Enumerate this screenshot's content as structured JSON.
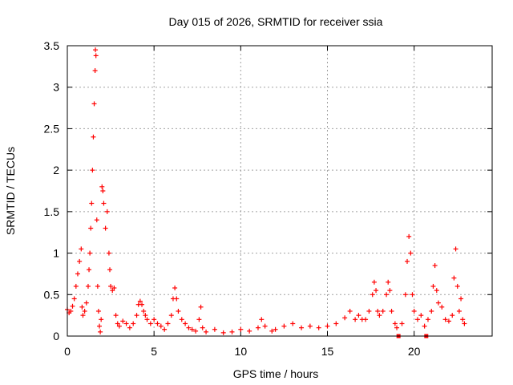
{
  "chart_data": {
    "type": "scatter",
    "title": "Day 015 of 2026, SRMTID for receiver ssia",
    "xlabel": "GPS time / hours",
    "ylabel": "SRMTID / TECUs",
    "xlim": [
      0,
      24.5
    ],
    "ylim": [
      0,
      3.5
    ],
    "xticks": [
      0,
      5,
      10,
      15,
      20
    ],
    "xtick_labels": [
      "0",
      "5",
      "10",
      "15",
      "20"
    ],
    "yticks": [
      0,
      0.5,
      1,
      1.5,
      2,
      2.5,
      3,
      3.5
    ],
    "ytick_labels": [
      "0",
      "0.5",
      "1",
      "1.5",
      "2",
      "2.5",
      "3",
      "3.5"
    ],
    "grid": true,
    "marker": "plus",
    "color": "#ff0000",
    "series": [
      {
        "name": "SRMTID",
        "points": [
          [
            0.0,
            0.32
          ],
          [
            0.1,
            0.28
          ],
          [
            0.2,
            0.3
          ],
          [
            0.3,
            0.36
          ],
          [
            0.4,
            0.45
          ],
          [
            0.5,
            0.6
          ],
          [
            0.6,
            0.75
          ],
          [
            0.7,
            0.9
          ],
          [
            0.8,
            1.05
          ],
          [
            0.85,
            0.35
          ],
          [
            0.9,
            0.25
          ],
          [
            1.0,
            0.3
          ],
          [
            1.1,
            0.4
          ],
          [
            1.2,
            0.6
          ],
          [
            1.25,
            0.8
          ],
          [
            1.3,
            1.0
          ],
          [
            1.35,
            1.3
          ],
          [
            1.4,
            1.6
          ],
          [
            1.45,
            2.0
          ],
          [
            1.5,
            2.4
          ],
          [
            1.55,
            2.8
          ],
          [
            1.6,
            3.2
          ],
          [
            1.62,
            3.45
          ],
          [
            1.65,
            3.38
          ],
          [
            1.7,
            1.4
          ],
          [
            1.75,
            0.6
          ],
          [
            1.8,
            0.3
          ],
          [
            1.85,
            0.12
          ],
          [
            1.9,
            0.05
          ],
          [
            1.95,
            0.2
          ],
          [
            2.0,
            1.8
          ],
          [
            2.05,
            1.75
          ],
          [
            2.1,
            1.6
          ],
          [
            2.2,
            1.3
          ],
          [
            2.3,
            1.5
          ],
          [
            2.4,
            1.0
          ],
          [
            2.45,
            0.8
          ],
          [
            2.5,
            0.6
          ],
          [
            2.6,
            0.55
          ],
          [
            2.7,
            0.58
          ],
          [
            2.8,
            0.25
          ],
          [
            2.9,
            0.15
          ],
          [
            3.0,
            0.12
          ],
          [
            3.2,
            0.18
          ],
          [
            3.4,
            0.15
          ],
          [
            3.6,
            0.1
          ],
          [
            3.8,
            0.15
          ],
          [
            4.0,
            0.25
          ],
          [
            4.1,
            0.38
          ],
          [
            4.2,
            0.42
          ],
          [
            4.3,
            0.38
          ],
          [
            4.4,
            0.3
          ],
          [
            4.5,
            0.25
          ],
          [
            4.6,
            0.2
          ],
          [
            4.8,
            0.15
          ],
          [
            5.0,
            0.2
          ],
          [
            5.2,
            0.15
          ],
          [
            5.4,
            0.12
          ],
          [
            5.6,
            0.08
          ],
          [
            5.8,
            0.15
          ],
          [
            6.0,
            0.25
          ],
          [
            6.1,
            0.45
          ],
          [
            6.2,
            0.58
          ],
          [
            6.3,
            0.45
          ],
          [
            6.4,
            0.3
          ],
          [
            6.6,
            0.2
          ],
          [
            6.8,
            0.15
          ],
          [
            7.0,
            0.1
          ],
          [
            7.2,
            0.08
          ],
          [
            7.4,
            0.06
          ],
          [
            7.6,
            0.2
          ],
          [
            7.7,
            0.35
          ],
          [
            7.8,
            0.1
          ],
          [
            8.0,
            0.05
          ],
          [
            8.5,
            0.08
          ],
          [
            9.0,
            0.04
          ],
          [
            9.5,
            0.05
          ],
          [
            10.0,
            0.08
          ],
          [
            10.5,
            0.06
          ],
          [
            11.0,
            0.1
          ],
          [
            11.2,
            0.2
          ],
          [
            11.4,
            0.12
          ],
          [
            11.8,
            0.06
          ],
          [
            12.0,
            0.08
          ],
          [
            12.5,
            0.12
          ],
          [
            13.0,
            0.15
          ],
          [
            13.5,
            0.1
          ],
          [
            14.0,
            0.12
          ],
          [
            14.5,
            0.1
          ],
          [
            15.0,
            0.12
          ],
          [
            15.5,
            0.15
          ],
          [
            16.0,
            0.22
          ],
          [
            16.3,
            0.3
          ],
          [
            16.6,
            0.2
          ],
          [
            16.8,
            0.25
          ],
          [
            17.0,
            0.2
          ],
          [
            17.2,
            0.2
          ],
          [
            17.4,
            0.3
          ],
          [
            17.6,
            0.5
          ],
          [
            17.7,
            0.65
          ],
          [
            17.8,
            0.55
          ],
          [
            17.9,
            0.3
          ],
          [
            18.0,
            0.25
          ],
          [
            18.2,
            0.3
          ],
          [
            18.4,
            0.5
          ],
          [
            18.5,
            0.65
          ],
          [
            18.6,
            0.55
          ],
          [
            18.7,
            0.3
          ],
          [
            18.9,
            0.15
          ],
          [
            19.0,
            0.1
          ],
          [
            19.1,
            0.0
          ],
          [
            19.3,
            0.15
          ],
          [
            19.5,
            0.5
          ],
          [
            19.6,
            0.9
          ],
          [
            19.7,
            1.2
          ],
          [
            19.8,
            1.0
          ],
          [
            19.9,
            0.5
          ],
          [
            20.0,
            0.3
          ],
          [
            20.2,
            0.2
          ],
          [
            20.4,
            0.25
          ],
          [
            20.6,
            0.12
          ],
          [
            20.7,
            0.0
          ],
          [
            20.8,
            0.2
          ],
          [
            21.0,
            0.3
          ],
          [
            21.1,
            0.6
          ],
          [
            21.2,
            0.85
          ],
          [
            21.3,
            0.55
          ],
          [
            21.4,
            0.4
          ],
          [
            21.6,
            0.35
          ],
          [
            21.8,
            0.2
          ],
          [
            22.0,
            0.18
          ],
          [
            22.2,
            0.25
          ],
          [
            22.3,
            0.7
          ],
          [
            22.4,
            1.05
          ],
          [
            22.5,
            0.6
          ],
          [
            22.6,
            0.3
          ],
          [
            22.7,
            0.45
          ],
          [
            22.8,
            0.2
          ],
          [
            22.9,
            0.15
          ]
        ]
      }
    ]
  }
}
